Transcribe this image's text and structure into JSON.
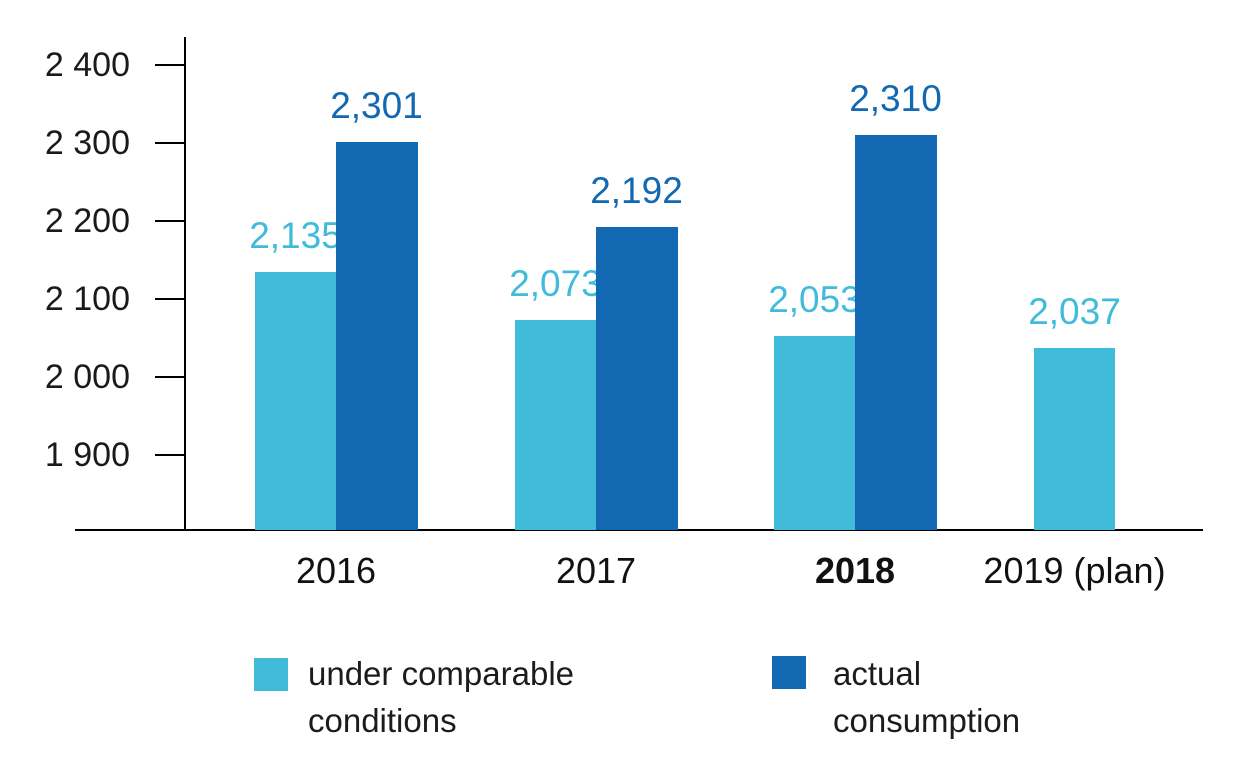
{
  "chart_data": {
    "type": "bar",
    "title": "",
    "xlabel": "",
    "ylabel": "",
    "categories": [
      {
        "label": "2016",
        "bold": false
      },
      {
        "label": "2017",
        "bold": false
      },
      {
        "label": "2018",
        "bold": true
      },
      {
        "label": "2019 (plan)",
        "bold": false
      }
    ],
    "series": [
      {
        "name": "under comparable conditions",
        "color": "#40bcda",
        "values": [
          2135,
          2073,
          2053,
          2037
        ],
        "display_labels": [
          "2,135",
          "2,073",
          "2,053",
          "2,037"
        ]
      },
      {
        "name": "actual consumption",
        "color": "#1268b1",
        "values": [
          2301,
          2192,
          2310,
          null
        ],
        "display_labels": [
          "2,301",
          "2,192",
          "2,310",
          null
        ]
      }
    ],
    "y_axis": {
      "ticks": [
        {
          "label": "2 400",
          "value": 2400
        },
        {
          "label": "2 300",
          "value": 2300
        },
        {
          "label": "2 200",
          "value": 2200
        },
        {
          "label": "2 100",
          "value": 2100
        },
        {
          "label": "2 000",
          "value": 2000
        },
        {
          "label": "1 900",
          "value": 1900
        }
      ],
      "axis_max": 2400,
      "axis_min_at_baseline": 1804
    },
    "grid": "off",
    "legend_position": "bottom"
  },
  "legend": {
    "items": [
      {
        "lines": [
          "under comparable",
          "conditions"
        ],
        "color": "#40bcda"
      },
      {
        "lines": [
          "actual",
          "consumption"
        ],
        "color": "#1268b1"
      }
    ]
  },
  "colors": {
    "axis": "#000000",
    "tick_text": "#1a1a1a",
    "category_text": "#111111",
    "legend_text": "#1c1c1c"
  }
}
